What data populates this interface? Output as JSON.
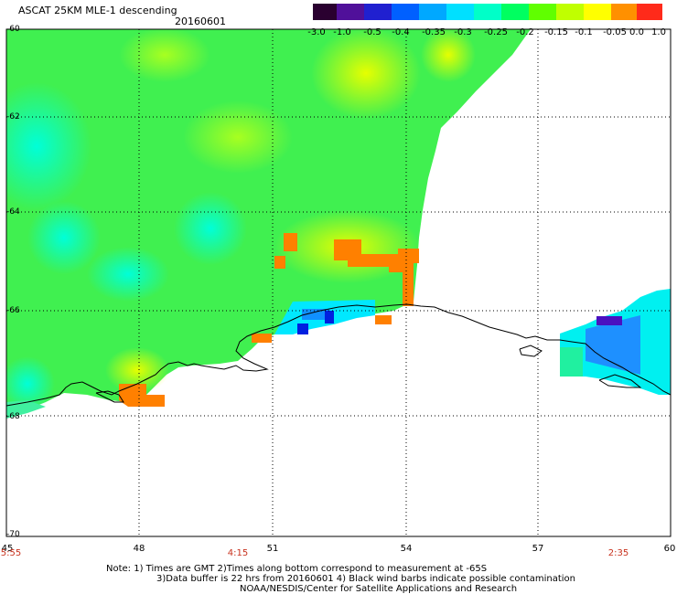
{
  "header": {
    "title": "ASCAT 25KM MLE-1 descending",
    "date": "20160601"
  },
  "colorbar": {
    "labels": [
      "-3.0",
      "-1.0",
      "-0.5",
      "-0.4",
      "-0.35",
      "-0.3",
      "-0.25",
      "-0.2",
      "-0.15",
      "-0.1",
      "-0.05",
      "0.0",
      "1.0"
    ],
    "colors": [
      "#3a0a4a",
      "#5a10a0",
      "#2020e0",
      "#0060ff",
      "#00a0ff",
      "#00e0ff",
      "#00ffc0",
      "#00ff60",
      "#60ff00",
      "#c0ff00",
      "#ffff00",
      "#ff8000",
      "#ff2020"
    ]
  },
  "axes": {
    "x_ticks": [
      "45",
      "48",
      "51",
      "54",
      "57",
      "60"
    ],
    "y_ticks": [
      "-60",
      "-62",
      "-64",
      "-66",
      "-68",
      "-70"
    ]
  },
  "time_labels": [
    "5:55",
    "4:15",
    "2:35"
  ],
  "notes": {
    "line1": "Note: 1) Times are GMT 2)Times along bottom correspond to measurement at -65S",
    "line2": "3)Data buffer is 22 hrs from 20160601 4) Black wind barbs indicate possible contamination",
    "line3": "NOAA/NESDIS/Center for Satellite Applications and Research"
  }
}
